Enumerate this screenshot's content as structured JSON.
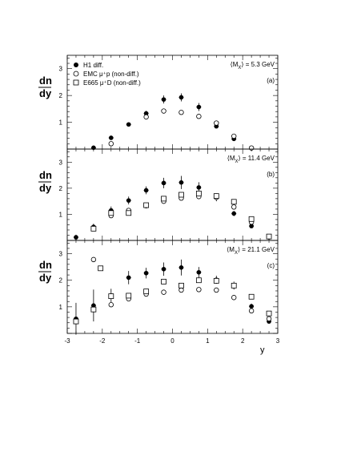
{
  "figure": {
    "ylabel_num": "dn",
    "ylabel_den": "dy",
    "xlabel": "y"
  },
  "legend": [
    {
      "marker": "filled-circle",
      "label": "H1 diff."
    },
    {
      "marker": "open-circle",
      "label": "EMC μ⁺p (non-diff.)"
    },
    {
      "marker": "open-square",
      "label": "E665 μ⁺D (non-diff.)"
    }
  ],
  "chart_data": [
    {
      "type": "scatter",
      "panel": "(a)",
      "mx_label": "⟨M",
      "mx_sub": "X",
      "mx_value": "⟩ = 5.3 GeV",
      "xlim": [
        -3,
        3
      ],
      "ylim": [
        0,
        3.5
      ],
      "yticks": [
        1,
        2,
        3
      ],
      "series": [
        {
          "name": "H1 diff.",
          "marker": "filled-circle",
          "points": [
            [
              -2.25,
              0.05,
              0.03
            ],
            [
              -1.75,
              0.42,
              0.05
            ],
            [
              -1.25,
              0.92,
              0.06
            ],
            [
              -0.75,
              1.33,
              0.1
            ],
            [
              -0.25,
              1.85,
              0.15
            ],
            [
              0.25,
              1.93,
              0.15
            ],
            [
              0.75,
              1.57,
              0.15
            ],
            [
              1.25,
              0.85,
              0.07
            ],
            [
              1.75,
              0.38,
              0.05
            ],
            [
              2.25,
              0.04,
              0.03
            ]
          ]
        },
        {
          "name": "EMC μ⁺p (non-diff.)",
          "marker": "open-circle",
          "points": [
            [
              -1.75,
              0.2,
              0
            ],
            [
              -0.75,
              1.2,
              0
            ],
            [
              -0.25,
              1.42,
              0
            ],
            [
              0.25,
              1.37,
              0
            ],
            [
              0.75,
              1.22,
              0
            ],
            [
              1.25,
              0.97,
              0
            ],
            [
              1.75,
              0.48,
              0
            ],
            [
              2.25,
              0.04,
              0
            ]
          ]
        }
      ]
    },
    {
      "type": "scatter",
      "panel": "(b)",
      "mx_label": "⟨M",
      "mx_sub": "X",
      "mx_value": "⟩ = 11.4 GeV",
      "xlim": [
        -3,
        3
      ],
      "ylim": [
        0,
        3.5
      ],
      "yticks": [
        1,
        2,
        3
      ],
      "series": [
        {
          "name": "H1 diff.",
          "marker": "filled-circle",
          "points": [
            [
              -2.75,
              0.12,
              0.1
            ],
            [
              -2.25,
              0.52,
              0.12
            ],
            [
              -1.75,
              1.15,
              0.15
            ],
            [
              -1.25,
              1.53,
              0.15
            ],
            [
              -0.75,
              1.92,
              0.15
            ],
            [
              -0.25,
              2.2,
              0.2
            ],
            [
              0.25,
              2.22,
              0.25
            ],
            [
              0.75,
              2.03,
              0.2
            ],
            [
              1.25,
              1.65,
              0.15
            ],
            [
              1.75,
              1.03,
              0.1
            ],
            [
              2.25,
              0.55,
              0.07
            ],
            [
              2.75,
              0.12,
              0.05
            ]
          ]
        },
        {
          "name": "EMC μ⁺p (non-diff.)",
          "marker": "open-circle",
          "points": [
            [
              -1.75,
              0.95,
              0
            ],
            [
              -1.25,
              1.15,
              0
            ],
            [
              -0.75,
              1.33,
              0
            ],
            [
              -0.25,
              1.5,
              0
            ],
            [
              0.25,
              1.62,
              0
            ],
            [
              0.75,
              1.68,
              0
            ],
            [
              1.25,
              1.65,
              0
            ],
            [
              1.75,
              1.28,
              0
            ],
            [
              2.25,
              0.7,
              0
            ]
          ]
        },
        {
          "name": "E665 μ⁺D (non-diff.)",
          "marker": "open-square",
          "points": [
            [
              -2.25,
              0.45,
              0
            ],
            [
              -1.75,
              1.05,
              0
            ],
            [
              -1.25,
              1.05,
              0
            ],
            [
              -0.75,
              1.35,
              0
            ],
            [
              -0.25,
              1.6,
              0
            ],
            [
              0.25,
              1.75,
              0
            ],
            [
              0.75,
              1.8,
              0
            ],
            [
              1.25,
              1.7,
              0
            ],
            [
              1.75,
              1.48,
              0
            ],
            [
              2.25,
              0.82,
              0
            ],
            [
              2.75,
              0.15,
              0
            ]
          ]
        }
      ]
    },
    {
      "type": "scatter",
      "panel": "(c)",
      "mx_label": "⟨M",
      "mx_sub": "X",
      "mx_value": "⟩ = 21.1 GeV",
      "xlim": [
        -3,
        3
      ],
      "ylim": [
        0,
        3.5
      ],
      "yticks": [
        1,
        2,
        3
      ],
      "series": [
        {
          "name": "H1 diff.",
          "marker": "filled-circle",
          "points": [
            [
              -2.75,
              0.55,
              0.6
            ],
            [
              -2.25,
              1.05,
              0.6
            ],
            [
              -1.75,
              1.38,
              0.3
            ],
            [
              -1.25,
              2.1,
              0.25
            ],
            [
              -0.75,
              2.27,
              0.2
            ],
            [
              -0.25,
              2.42,
              0.25
            ],
            [
              0.25,
              2.48,
              0.3
            ],
            [
              0.75,
              2.3,
              0.2
            ],
            [
              1.25,
              2.02,
              0.15
            ],
            [
              1.75,
              1.8,
              0.15
            ],
            [
              2.25,
              1.02,
              0.1
            ],
            [
              2.75,
              0.45,
              0.08
            ]
          ]
        },
        {
          "name": "EMC μ⁺p (non-diff.)",
          "marker": "open-circle",
          "points": [
            [
              -2.25,
              2.78,
              0
            ],
            [
              -1.75,
              1.08,
              0
            ],
            [
              -1.25,
              1.3,
              0
            ],
            [
              -0.75,
              1.48,
              0
            ],
            [
              -0.25,
              1.55,
              0
            ],
            [
              0.25,
              1.63,
              0
            ],
            [
              0.75,
              1.65,
              0
            ],
            [
              1.25,
              1.63,
              0
            ],
            [
              1.75,
              1.35,
              0
            ],
            [
              2.25,
              0.85,
              0
            ],
            [
              2.75,
              0.55,
              0
            ]
          ]
        },
        {
          "name": "E665 μ⁺D (non-diff.)",
          "marker": "open-square",
          "points": [
            [
              -2.75,
              0.45,
              0
            ],
            [
              -2.25,
              0.9,
              0
            ],
            [
              -2.05,
              2.45,
              0
            ],
            [
              -1.75,
              1.4,
              0
            ],
            [
              -1.25,
              1.42,
              0
            ],
            [
              -0.75,
              1.58,
              0
            ],
            [
              -0.25,
              1.95,
              0
            ],
            [
              0.25,
              1.8,
              0
            ],
            [
              0.75,
              2.0,
              0
            ],
            [
              1.25,
              1.98,
              0
            ],
            [
              1.75,
              1.8,
              0
            ],
            [
              2.25,
              1.38,
              0
            ],
            [
              2.75,
              0.75,
              0
            ]
          ]
        }
      ]
    }
  ]
}
